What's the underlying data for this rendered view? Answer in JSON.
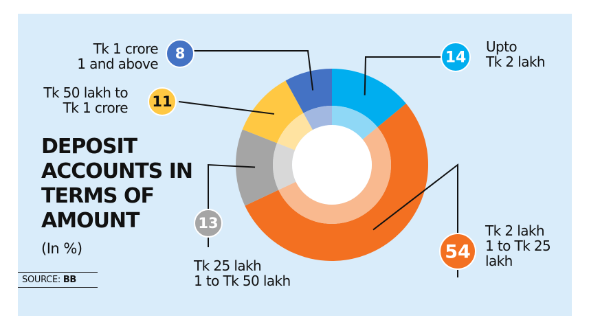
{
  "chart_data": {
    "type": "pie",
    "title_lines": [
      "DEPOSIT",
      "ACCOUNTS IN",
      "TERMS OF",
      "AMOUNT"
    ],
    "unit": "(In %)",
    "source_label": "SOURCE:",
    "source_value": "BB",
    "slices": [
      {
        "label_lines": [
          "Upto",
          "Tk 2 lakh"
        ],
        "value": 14,
        "value_label": "14",
        "color": "#00aeef",
        "inner_color": "#8fd8f6"
      },
      {
        "label_lines": [
          "Tk 2 lakh",
          "1 to Tk 25",
          "lakh"
        ],
        "value": 54,
        "value_label": "54",
        "color": "#f37021",
        "inner_color": "#f9b98f"
      },
      {
        "label_lines": [
          "Tk 25 lakh",
          "1 to Tk 50 lakh"
        ],
        "value": 13,
        "value_label": "13",
        "color": "#a5a5a5",
        "inner_color": "#d8d8d8"
      },
      {
        "label_lines": [
          "Tk 50 lakh to",
          "Tk 1 crore"
        ],
        "value": 11,
        "value_label": "11",
        "color": "#ffc843",
        "inner_color": "#ffe3a1"
      },
      {
        "label_lines": [
          "Tk 1 crore",
          "1 and above"
        ],
        "value": 8,
        "value_label": "8",
        "color": "#4472c4",
        "inner_color": "#a2b8e1"
      }
    ]
  }
}
